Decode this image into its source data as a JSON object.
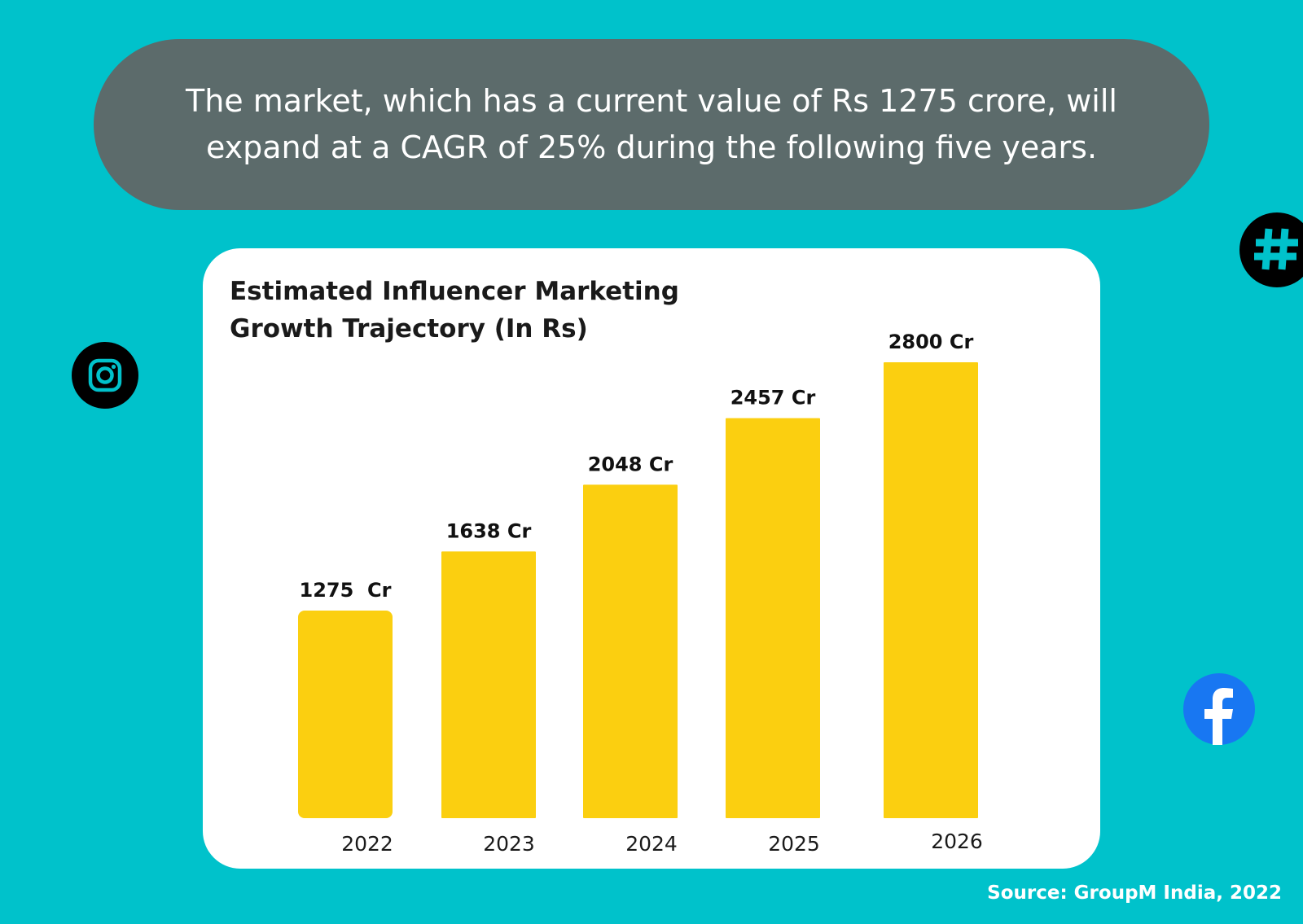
{
  "banner": {
    "line1": "The market, which has a current value of Rs 1275 crore, will",
    "line2": "expand at a CAGR of 25% during the following five years."
  },
  "source": "Source:  GroupM India, 2022",
  "icons": {
    "instagram": "instagram-icon",
    "hashtag": "hashtag-icon",
    "facebook": "facebook-icon"
  },
  "colors": {
    "background": "#00c2cb",
    "banner": "#5c6b6b",
    "bar": "#fbcf10",
    "facebook": "#1877f2"
  },
  "chart_data": {
    "type": "bar",
    "title_line1": "Estimated Influencer Marketing",
    "title_line2": "Growth Trajectory (In Rs)",
    "categories": [
      "2022",
      "2023",
      "2024",
      "2025",
      "2026"
    ],
    "values": [
      1275,
      1638,
      2048,
      2457,
      2800
    ],
    "data_labels": [
      "1275  Cr",
      "1638 Cr",
      "2048 Cr",
      "2457 Cr",
      "2800 Cr"
    ],
    "unit": "Cr",
    "ylim": [
      0,
      3400
    ],
    "grid": false,
    "legend": "none"
  }
}
